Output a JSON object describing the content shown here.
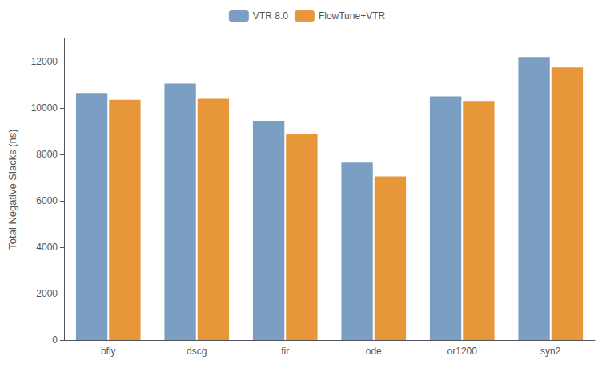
{
  "chart_data": {
    "type": "bar",
    "categories": [
      "bfly",
      "dscg",
      "fir",
      "ode",
      "or1200",
      "syn2"
    ],
    "series": [
      {
        "name": "VTR 8.0",
        "color": "#7a9fc2",
        "values": [
          10650,
          11050,
          9450,
          7650,
          10500,
          12200
        ]
      },
      {
        "name": "FlowTune+VTR",
        "color": "#e8963a",
        "values": [
          10350,
          10400,
          8900,
          7050,
          10300,
          11750
        ]
      }
    ],
    "ylabel": "Total Negative Slacks (ns)",
    "ylim": [
      0,
      13000
    ],
    "yticks": [
      0,
      2000,
      4000,
      6000,
      8000,
      10000,
      12000
    ],
    "grid": false,
    "legend": "upper center"
  }
}
